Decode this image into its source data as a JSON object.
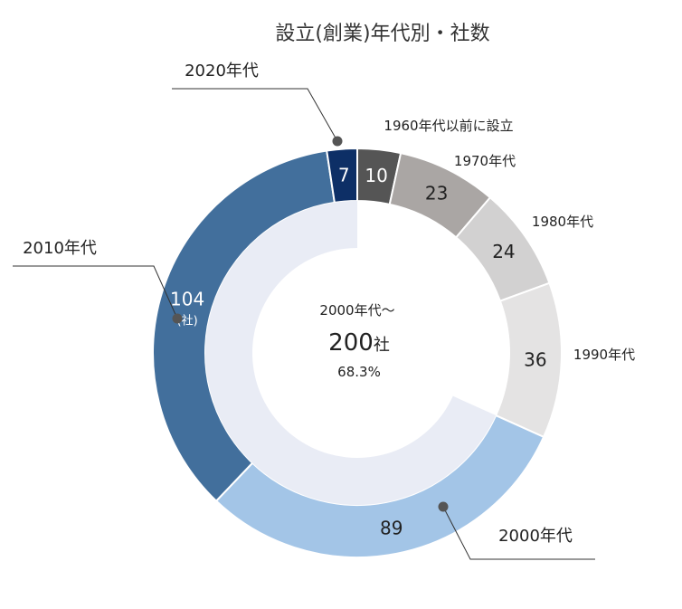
{
  "chart_data": {
    "type": "pie",
    "title": "設立(創業)年代別・社数",
    "unit": "社",
    "unit_paren": "(社)",
    "series": [
      {
        "name": "1960年代以前に設立",
        "value": 10,
        "color": "#555555",
        "text_color": "#ffffff"
      },
      {
        "name": "1970年代",
        "value": 23,
        "color": "#aaa6a4",
        "text_color": "#222222"
      },
      {
        "name": "1980年代",
        "value": 24,
        "color": "#d2d1d1",
        "text_color": "#222222"
      },
      {
        "name": "1990年代",
        "value": 36,
        "color": "#e4e3e3",
        "text_color": "#222222"
      },
      {
        "name": "2000年代",
        "value": 89,
        "color": "#a3c5e7",
        "text_color": "#222222"
      },
      {
        "name": "2010年代",
        "value": 104,
        "color": "#426f9c",
        "text_color": "#ffffff"
      },
      {
        "name": "2020年代",
        "value": 7,
        "color": "#0d2f66",
        "text_color": "#ffffff"
      }
    ],
    "inner": {
      "label": "2000年代〜",
      "value": 200,
      "percent": "68.3%",
      "color": "#e9ecf5"
    }
  }
}
